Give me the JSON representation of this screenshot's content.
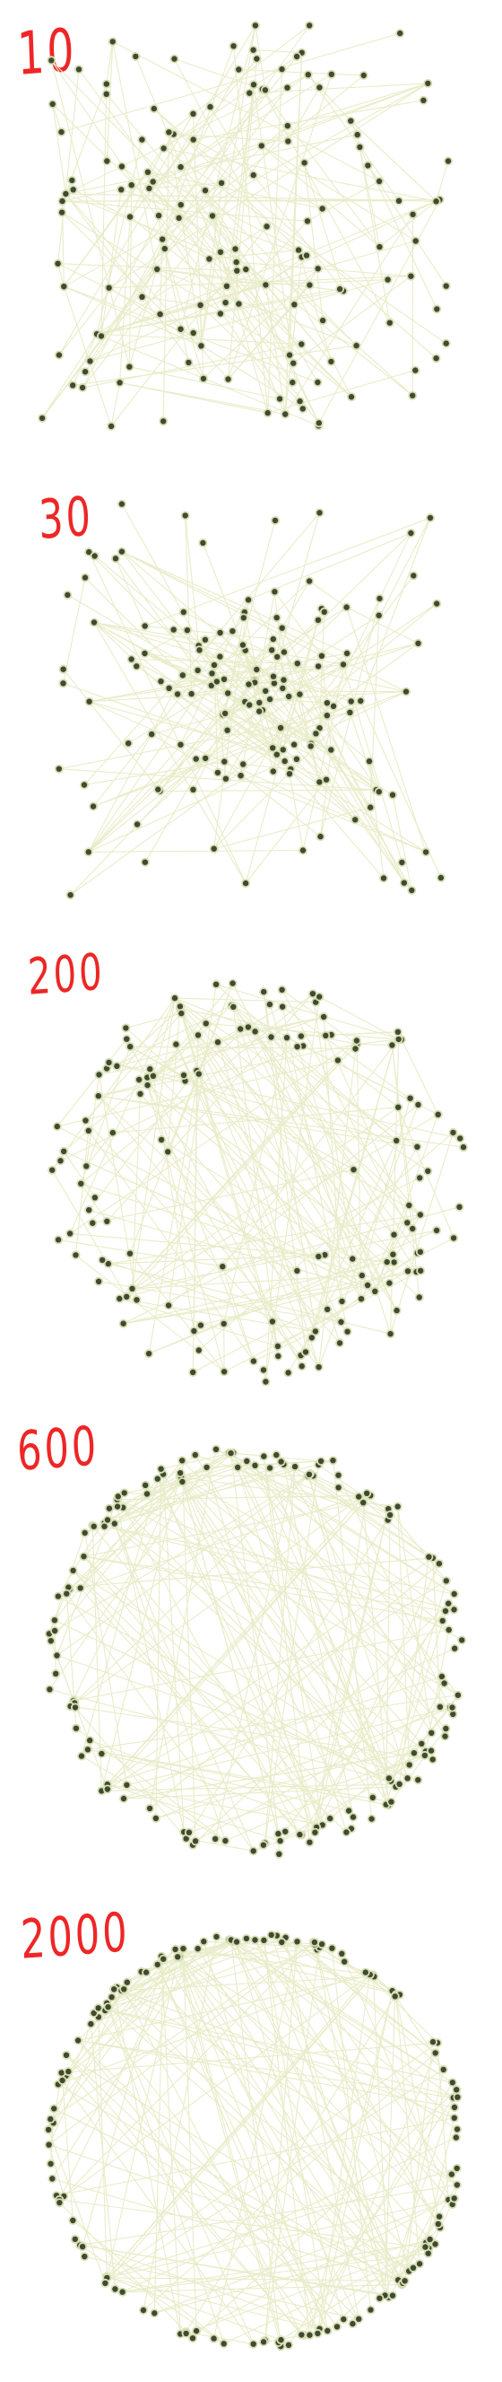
{
  "panels": [
    {
      "label": "10",
      "layout": "scattered"
    },
    {
      "label": "30",
      "layout": "clustered"
    },
    {
      "label": "200",
      "layout": "ring-forming"
    },
    {
      "label": "600",
      "layout": "ring"
    },
    {
      "label": "2000",
      "layout": "ring"
    }
  ],
  "colors": {
    "label": "#ee2626",
    "edge": "#e9ecc8",
    "node": "#3f4a33",
    "node_ring": "#d9dfb4",
    "background": "#ffffff"
  }
}
